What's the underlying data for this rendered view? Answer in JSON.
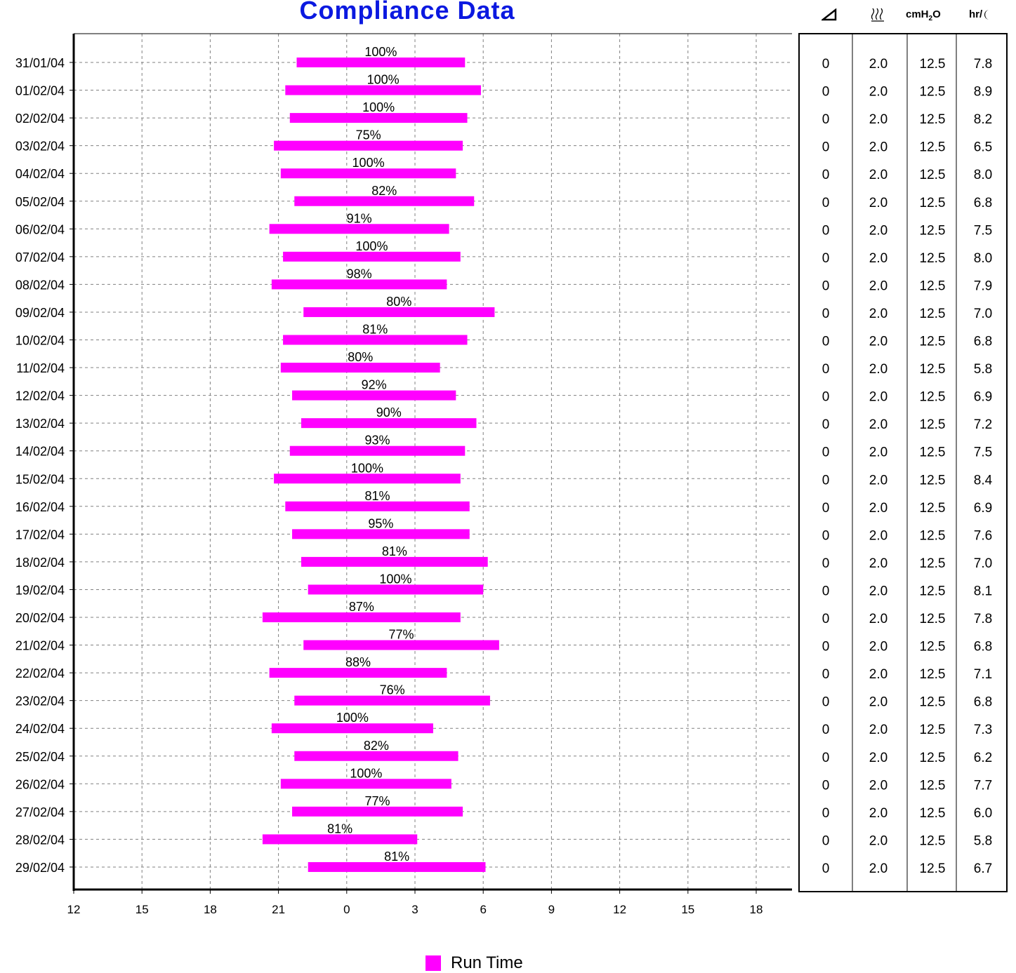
{
  "title": "Compliance Data",
  "colors": {
    "bar": "#ff00ff",
    "title": "#0b19e0",
    "grid": "#808080"
  },
  "table_headers": {
    "leak_icon": "triangle-icon",
    "humidity_icon": "humidity-waves-icon",
    "pressure_label": "cmH",
    "pressure_sub": "2",
    "pressure_tail": "O",
    "hours_label": "hr/",
    "hours_icon": "moon-icon"
  },
  "legend": {
    "label": "Run Time"
  },
  "chart_data": {
    "type": "bar",
    "orientation": "horizontal-range",
    "x_tick_labels": [
      "12",
      "15",
      "18",
      "21",
      "0",
      "3",
      "6",
      "9",
      "12",
      "15",
      "18"
    ],
    "x_range_hours_from_noon": [
      0,
      31.5
    ],
    "grid": true,
    "legend_position": "bottom-center",
    "categories": [
      "31/01/04",
      "01/02/04",
      "02/02/04",
      "03/02/04",
      "04/02/04",
      "05/02/04",
      "06/02/04",
      "07/02/04",
      "08/02/04",
      "09/02/04",
      "10/02/04",
      "11/02/04",
      "12/02/04",
      "13/02/04",
      "14/02/04",
      "15/02/04",
      "16/02/04",
      "17/02/04",
      "18/02/04",
      "19/02/04",
      "20/02/04",
      "21/02/04",
      "22/02/04",
      "23/02/04",
      "24/02/04",
      "25/02/04",
      "26/02/04",
      "27/02/04",
      "28/02/04",
      "29/02/04"
    ],
    "series": [
      {
        "name": "Run Time",
        "start": [
          "21:48",
          "21:18",
          "21:30",
          "20:48",
          "21:06",
          "21:42",
          "20:36",
          "21:12",
          "20:42",
          "22:06",
          "21:12",
          "21:06",
          "21:36",
          "22:00",
          "21:30",
          "20:48",
          "21:18",
          "21:36",
          "22:00",
          "22:18",
          "20:18",
          "22:06",
          "20:36",
          "21:42",
          "20:42",
          "21:42",
          "21:06",
          "21:36",
          "20:18",
          "22:18"
        ],
        "end": [
          "05:12",
          "05:54",
          "05:18",
          "05:06",
          "04:48",
          "05:36",
          "04:30",
          "05:00",
          "04:24",
          "06:30",
          "05:18",
          "04:06",
          "04:48",
          "05:42",
          "05:12",
          "05:00",
          "05:24",
          "05:24",
          "06:12",
          "06:00",
          "05:00",
          "06:42",
          "04:24",
          "06:18",
          "03:48",
          "04:54",
          "04:36",
          "05:06",
          "03:06",
          "06:06"
        ],
        "compliance": [
          "100%",
          "100%",
          "100%",
          "75%",
          "100%",
          "82%",
          "91%",
          "100%",
          "98%",
          "80%",
          "81%",
          "80%",
          "92%",
          "90%",
          "93%",
          "100%",
          "81%",
          "95%",
          "81%",
          "100%",
          "87%",
          "77%",
          "88%",
          "76%",
          "100%",
          "82%",
          "100%",
          "77%",
          "81%",
          "81%"
        ]
      }
    ],
    "table": {
      "leak": [
        "0",
        "0",
        "0",
        "0",
        "0",
        "0",
        "0",
        "0",
        "0",
        "0",
        "0",
        "0",
        "0",
        "0",
        "0",
        "0",
        "0",
        "0",
        "0",
        "0",
        "0",
        "0",
        "0",
        "0",
        "0",
        "0",
        "0",
        "0",
        "0",
        "0"
      ],
      "humidity": [
        "2.0",
        "2.0",
        "2.0",
        "2.0",
        "2.0",
        "2.0",
        "2.0",
        "2.0",
        "2.0",
        "2.0",
        "2.0",
        "2.0",
        "2.0",
        "2.0",
        "2.0",
        "2.0",
        "2.0",
        "2.0",
        "2.0",
        "2.0",
        "2.0",
        "2.0",
        "2.0",
        "2.0",
        "2.0",
        "2.0",
        "2.0",
        "2.0",
        "2.0",
        "2.0"
      ],
      "pressure": [
        "12.5",
        "12.5",
        "12.5",
        "12.5",
        "12.5",
        "12.5",
        "12.5",
        "12.5",
        "12.5",
        "12.5",
        "12.5",
        "12.5",
        "12.5",
        "12.5",
        "12.5",
        "12.5",
        "12.5",
        "12.5",
        "12.5",
        "12.5",
        "12.5",
        "12.5",
        "12.5",
        "12.5",
        "12.5",
        "12.5",
        "12.5",
        "12.5",
        "12.5",
        "12.5"
      ],
      "hours": [
        "7.8",
        "8.9",
        "8.2",
        "6.5",
        "8.0",
        "6.8",
        "7.5",
        "8.0",
        "7.9",
        "7.0",
        "6.8",
        "5.8",
        "6.9",
        "7.2",
        "7.5",
        "8.4",
        "6.9",
        "7.6",
        "7.0",
        "8.1",
        "7.8",
        "6.8",
        "7.1",
        "6.8",
        "7.3",
        "6.2",
        "7.7",
        "6.0",
        "5.8",
        "6.7"
      ]
    }
  }
}
